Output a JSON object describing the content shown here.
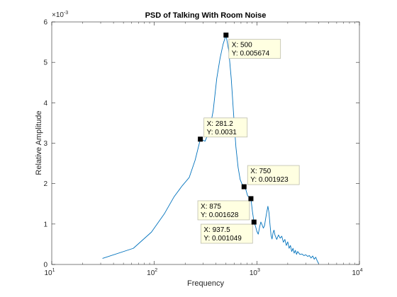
{
  "chart_data": {
    "type": "line",
    "title": "PSD of Talking With Room Noise",
    "xlabel": "Frequency",
    "ylabel": "Relative Amplitude",
    "xscale": "log",
    "xlim": [
      10,
      10000
    ],
    "ylim": [
      0,
      0.006
    ],
    "x_ticks": [
      10,
      100,
      1000,
      10000
    ],
    "x_tick_labels": [
      {
        "base": "10",
        "exp": "1"
      },
      {
        "base": "10",
        "exp": "2"
      },
      {
        "base": "10",
        "exp": "3"
      },
      {
        "base": "10",
        "exp": "4"
      }
    ],
    "y_ticks": [
      0,
      1,
      2,
      3,
      4,
      5,
      6
    ],
    "y_tick_labels": [
      "0",
      "1",
      "2",
      "3",
      "4",
      "5",
      "6"
    ],
    "y_exponent": {
      "base": "×10",
      "exp": "-3"
    },
    "grid": false,
    "line_color": "#0072bd",
    "series": [
      {
        "x": [
          31.25,
          62.5,
          93.75,
          125,
          156.25,
          187.5,
          218.75,
          250,
          281.25,
          312.5,
          343.75,
          375,
          406.25,
          437.5,
          468.75,
          500,
          531.25,
          562.5,
          593.75,
          625,
          656.25,
          687.5,
          718.75,
          750,
          781.25,
          812.5,
          843.75,
          875,
          906.25,
          937.5,
          968.75,
          1000,
          1031.25,
          1062.5,
          1093.75,
          1125,
          1156.25,
          1187.5,
          1218.75,
          1250,
          1281.25,
          1312.5,
          1343.75,
          1375,
          1406.25,
          1437.5,
          1468.75,
          1500,
          1562.5,
          1625,
          1687.5,
          1750,
          1812.5,
          1875,
          1937.5,
          2000,
          2062.5,
          2125,
          2187.5,
          2250,
          2312.5,
          2375,
          2437.5,
          2500,
          2625,
          2750,
          2875,
          3000,
          3125,
          3250,
          3375,
          3500,
          3625,
          3750,
          3875,
          4000
        ],
        "y": [
          0.00015,
          0.0004,
          0.0008,
          0.00125,
          0.00168,
          0.00195,
          0.00215,
          0.00258,
          0.0031,
          0.00305,
          0.0033,
          0.0038,
          0.0046,
          0.0051,
          0.00545,
          0.005674,
          0.0053,
          0.0046,
          0.0037,
          0.0029,
          0.0024,
          0.0021,
          0.00198,
          0.001923,
          0.00185,
          0.0017,
          0.00166,
          0.001628,
          0.0013,
          0.001049,
          0.00095,
          0.00082,
          0.00075,
          0.00092,
          0.00105,
          0.00098,
          0.0009,
          0.00096,
          0.00114,
          0.0013,
          0.00144,
          0.00128,
          0.00098,
          0.00072,
          0.00063,
          0.00078,
          0.00085,
          0.00073,
          0.00062,
          0.00073,
          0.00065,
          0.0007,
          0.00055,
          0.00062,
          0.00047,
          0.00056,
          0.0004,
          0.00047,
          0.00032,
          0.0004,
          0.00028,
          0.00035,
          0.00025,
          0.00032,
          0.00025,
          0.00026,
          0.00022,
          0.00024,
          0.0002,
          0.00022,
          0.00016,
          0.00021,
          0.00013,
          0.00018,
          9e-05,
          2e-05
        ]
      }
    ],
    "datatips": [
      {
        "x": 500,
        "y": 0.005674,
        "x_text": "X: 500",
        "y_text": "Y: 0.005674",
        "box": "right-below"
      },
      {
        "x": 281.2,
        "y": 0.0031,
        "x_text": "X: 281.2",
        "y_text": "Y: 0.0031",
        "box": "right-above"
      },
      {
        "x": 750,
        "y": 0.001923,
        "x_text": "X: 750",
        "y_text": "Y: 0.001923",
        "box": "right-above"
      },
      {
        "x": 875,
        "y": 0.001628,
        "x_text": "X: 875",
        "y_text": "Y: 0.001628",
        "box": "left-below"
      },
      {
        "x": 937.5,
        "y": 0.001049,
        "x_text": "X: 937.5",
        "y_text": "Y: 0.001049",
        "box": "left-below"
      }
    ]
  }
}
